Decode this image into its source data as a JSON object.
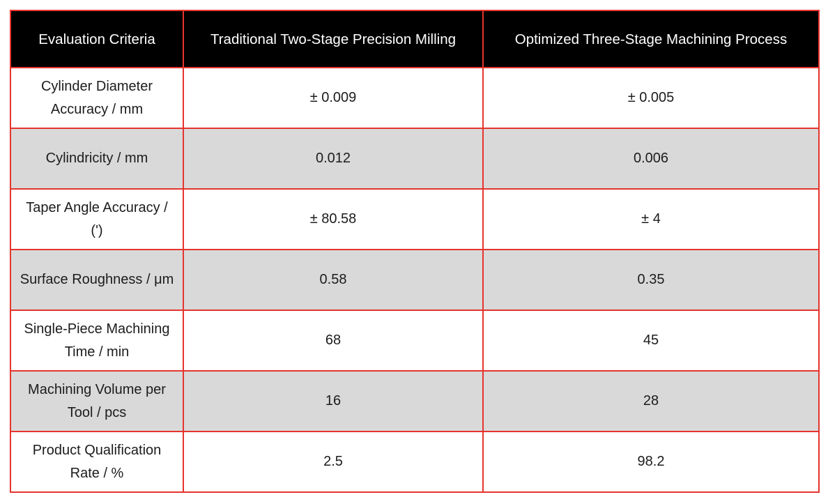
{
  "colors": {
    "border": "#e5342e",
    "header_bg": "#000000",
    "header_text": "#ffffff",
    "alt_row_bg": "#d9d9d9",
    "body_text": "#1c1c1c"
  },
  "chart_data": {
    "type": "table",
    "title": "",
    "columns": [
      "Evaluation Criteria",
      "Traditional Two-Stage Precision Milling",
      "Optimized Three-Stage Machining Process"
    ],
    "rows": [
      {
        "criteria": "Cylinder Diameter Accuracy / mm",
        "traditional": "± 0.009",
        "optimized": "± 0.005"
      },
      {
        "criteria": "Cylindricity / mm",
        "traditional": "0.012",
        "optimized": "0.006"
      },
      {
        "criteria": "Taper Angle Accuracy / (')",
        "traditional": "± 80.58",
        "optimized": "± 4"
      },
      {
        "criteria": "Surface Roughness / μm",
        "traditional": "0.58",
        "optimized": "0.35"
      },
      {
        "criteria": "Single-Piece Machining Time / min",
        "traditional": "68",
        "optimized": "45"
      },
      {
        "criteria": "Machining Volume per Tool / pcs",
        "traditional": "16",
        "optimized": "28"
      },
      {
        "criteria": "Product Qualification Rate / %",
        "traditional": "2.5",
        "optimized": "98.2"
      }
    ]
  }
}
